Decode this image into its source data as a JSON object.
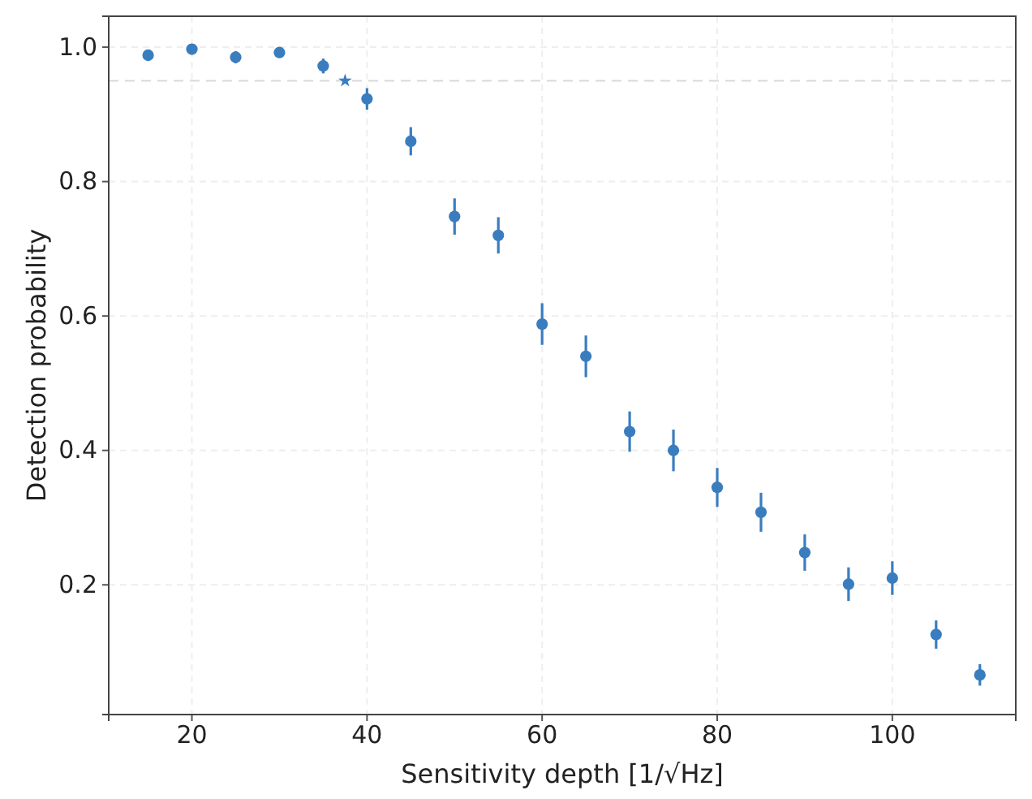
{
  "chart_data": {
    "type": "scatter",
    "xlabel": "Sensitivity depth [1/√Hz]",
    "ylabel": "Detection probability",
    "xlim": [
      10.5,
      114.1
    ],
    "ylim": [
      0.007,
      1.046
    ],
    "xticks": [
      20,
      40,
      60,
      80,
      100
    ],
    "yticks": [
      {
        "value": 0.2,
        "label": "0.2"
      },
      {
        "value": 0.4,
        "label": "0.4"
      },
      {
        "value": 0.6,
        "label": "0.6"
      },
      {
        "value": 0.8,
        "label": "0.8"
      },
      {
        "value": 1.0,
        "label": "1.0"
      }
    ],
    "grid": true,
    "ref_lines": [
      {
        "axis": "y",
        "value": 0.95,
        "color": "#d9d9d9",
        "line_style": "dashed"
      }
    ],
    "series": [
      {
        "marker": "circle",
        "color": "#3a7dbf",
        "x": [
          15,
          20,
          25,
          30,
          35,
          40,
          45,
          50,
          55,
          60,
          65,
          70,
          75,
          80,
          85,
          90,
          95,
          100,
          105,
          110
        ],
        "values": [
          0.988,
          0.997,
          0.985,
          0.992,
          0.972,
          0.923,
          0.86,
          0.748,
          0.72,
          0.588,
          0.54,
          0.428,
          0.4,
          0.345,
          0.308,
          0.248,
          0.201,
          0.21,
          0.126,
          0.066
        ],
        "errors": [
          0.008,
          0.005,
          0.009,
          0.007,
          0.011,
          0.016,
          0.021,
          0.027,
          0.027,
          0.031,
          0.031,
          0.03,
          0.031,
          0.029,
          0.029,
          0.027,
          0.025,
          0.025,
          0.021,
          0.016
        ]
      },
      {
        "marker": "star",
        "color": "#3a7dbf",
        "x": [
          37.5
        ],
        "values": [
          0.95
        ]
      }
    ]
  }
}
